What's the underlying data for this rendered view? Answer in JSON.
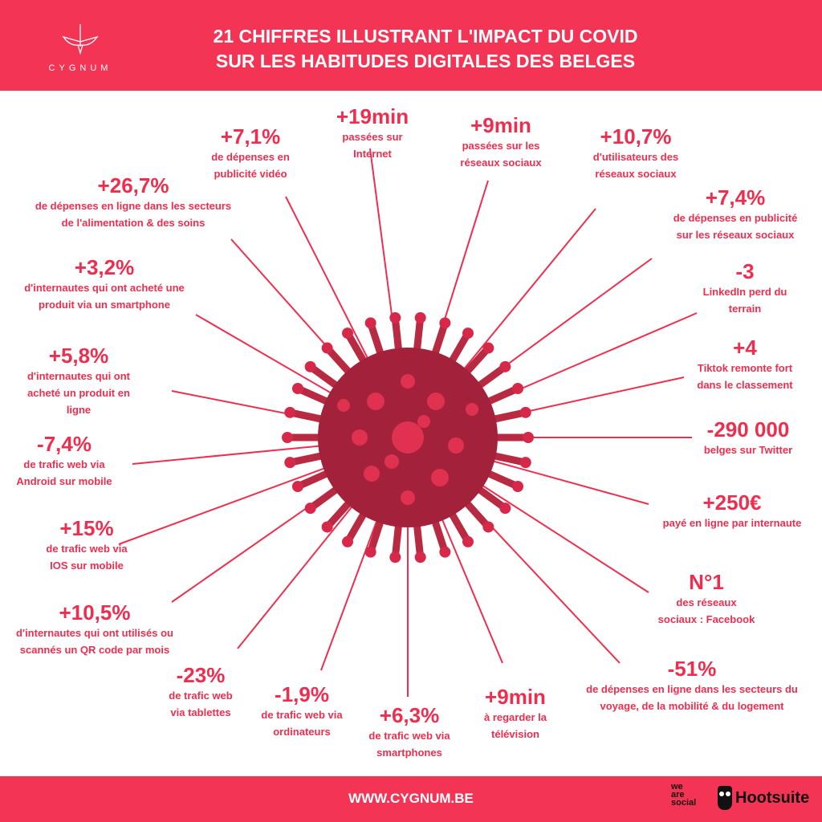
{
  "header": {
    "title_line1": "21 CHIFFRES  ILLUSTRANT L'IMPACT DU COVID",
    "title_line2": "SUR LES HABITUDES DIGITALES DES BELGES",
    "logo_text": "CYGNUM"
  },
  "footer": {
    "url": "WWW.CYGNUM.BE",
    "partner1": "we are social",
    "partner2": "Hootsuite"
  },
  "colors": {
    "brand": "#f43455",
    "text": "#ef2e4f",
    "virus": "#a3213a"
  },
  "stats": [
    {
      "value": "+19min",
      "lines": [
        "passées sur",
        "Internet"
      ]
    },
    {
      "value": "+9min",
      "lines": [
        "passées sur les",
        "réseaux sociaux"
      ]
    },
    {
      "value": "+10,7%",
      "lines": [
        "d'utilisateurs des",
        "réseaux sociaux"
      ]
    },
    {
      "value": "+7,4%",
      "lines": [
        "de dépenses en publicité",
        "sur les réseaux sociaux"
      ]
    },
    {
      "value": "-3",
      "lines": [
        "LinkedIn perd du",
        "terrain"
      ]
    },
    {
      "value": "+4",
      "lines": [
        "Tiktok remonte fort",
        "dans le classement"
      ]
    },
    {
      "value": "-290 000",
      "lines": [
        "belges sur Twitter"
      ]
    },
    {
      "value": "+250€",
      "lines": [
        "payé en ligne  par internaute"
      ]
    },
    {
      "value": "N°1",
      "lines": [
        "des réseaux",
        "sociaux : Facebook"
      ]
    },
    {
      "value": "-51%",
      "lines": [
        "de dépenses en ligne dans les secteurs du",
        "voyage, de la mobilité & du logement"
      ]
    },
    {
      "value": "+9min",
      "lines": [
        "à regarder la",
        "télévision"
      ]
    },
    {
      "value": "+6,3%",
      "lines": [
        "de trafic web via",
        "smartphones"
      ]
    },
    {
      "value": "-1,9%",
      "lines": [
        "de trafic web via",
        "ordinateurs"
      ]
    },
    {
      "value": "-23%",
      "lines": [
        "de trafic web",
        "via tablettes"
      ]
    },
    {
      "value": "+10,5%",
      "lines": [
        "d'internautes qui ont utilisés ou",
        "scannés un QR code par mois"
      ]
    },
    {
      "value": "+15%",
      "lines": [
        "de trafic web via",
        "IOS sur mobile"
      ]
    },
    {
      "value": "-7,4%",
      "lines": [
        "de trafic web via",
        "Android sur mobile"
      ]
    },
    {
      "value": "+5,8%",
      "lines": [
        "d'internautes qui ont",
        "acheté un produit en",
        "ligne"
      ]
    },
    {
      "value": "+3,2%",
      "lines": [
        "d'internautes qui ont acheté une",
        "produit via un smartphone"
      ]
    },
    {
      "value": "+26,7%",
      "lines": [
        "de dépenses en ligne dans les secteurs",
        "de l'alimentation & des soins"
      ]
    },
    {
      "value": "+7,1%",
      "lines": [
        "de dépenses en",
        "publicité vidéo"
      ]
    }
  ]
}
